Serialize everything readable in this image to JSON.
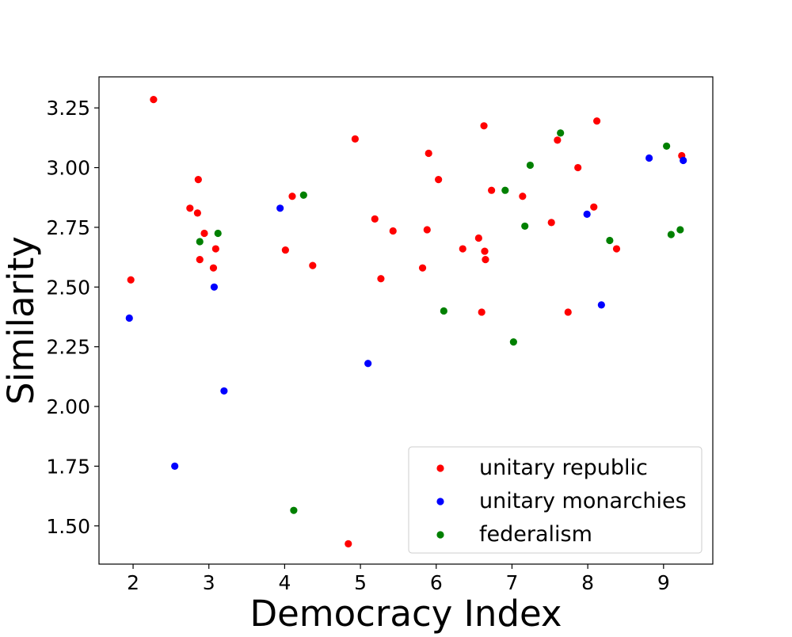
{
  "chart_data": {
    "type": "scatter",
    "title": "",
    "xlabel": "Democracy Index",
    "ylabel": "Similarity",
    "xlim": [
      1.55,
      9.65
    ],
    "ylim": [
      1.34,
      3.38
    ],
    "xticks": [
      {
        "value": 2,
        "label": "2"
      },
      {
        "value": 3,
        "label": "3"
      },
      {
        "value": 4,
        "label": "4"
      },
      {
        "value": 5,
        "label": "5"
      },
      {
        "value": 6,
        "label": "6"
      },
      {
        "value": 7,
        "label": "7"
      },
      {
        "value": 8,
        "label": "8"
      },
      {
        "value": 9,
        "label": "9"
      }
    ],
    "yticks": [
      {
        "value": 1.5,
        "label": "1.50"
      },
      {
        "value": 1.75,
        "label": "1.75"
      },
      {
        "value": 2.0,
        "label": "2.00"
      },
      {
        "value": 2.25,
        "label": "2.25"
      },
      {
        "value": 2.5,
        "label": "2.50"
      },
      {
        "value": 2.75,
        "label": "2.75"
      },
      {
        "value": 3.0,
        "label": "3.00"
      },
      {
        "value": 3.25,
        "label": "3.25"
      }
    ],
    "grid": false,
    "legend_position": "lower-right",
    "series": [
      {
        "name": "unitary republic",
        "color": "#ff0000",
        "points": [
          {
            "x": 1.97,
            "y": 2.53
          },
          {
            "x": 2.27,
            "y": 3.285
          },
          {
            "x": 2.75,
            "y": 2.83
          },
          {
            "x": 2.85,
            "y": 2.81
          },
          {
            "x": 2.86,
            "y": 2.95
          },
          {
            "x": 2.88,
            "y": 2.615
          },
          {
            "x": 2.94,
            "y": 2.725
          },
          {
            "x": 3.06,
            "y": 2.58
          },
          {
            "x": 3.09,
            "y": 2.66
          },
          {
            "x": 4.01,
            "y": 2.655
          },
          {
            "x": 4.1,
            "y": 2.88
          },
          {
            "x": 4.37,
            "y": 2.59
          },
          {
            "x": 4.84,
            "y": 1.425
          },
          {
            "x": 4.93,
            "y": 3.12
          },
          {
            "x": 5.19,
            "y": 2.785
          },
          {
            "x": 5.27,
            "y": 2.535
          },
          {
            "x": 5.43,
            "y": 2.735
          },
          {
            "x": 5.82,
            "y": 2.58
          },
          {
            "x": 5.88,
            "y": 2.74
          },
          {
            "x": 5.9,
            "y": 3.06
          },
          {
            "x": 6.03,
            "y": 2.95
          },
          {
            "x": 6.35,
            "y": 2.66
          },
          {
            "x": 6.56,
            "y": 2.705
          },
          {
            "x": 6.6,
            "y": 2.395
          },
          {
            "x": 6.63,
            "y": 3.175
          },
          {
            "x": 6.64,
            "y": 2.65
          },
          {
            "x": 6.65,
            "y": 2.615
          },
          {
            "x": 6.73,
            "y": 2.905
          },
          {
            "x": 7.14,
            "y": 2.88
          },
          {
            "x": 7.52,
            "y": 2.77
          },
          {
            "x": 7.6,
            "y": 3.115
          },
          {
            "x": 7.74,
            "y": 2.395
          },
          {
            "x": 7.87,
            "y": 3.0
          },
          {
            "x": 8.08,
            "y": 2.835
          },
          {
            "x": 8.12,
            "y": 3.195
          },
          {
            "x": 8.38,
            "y": 2.66
          },
          {
            "x": 9.24,
            "y": 3.05
          }
        ]
      },
      {
        "name": "unitary monarchies",
        "color": "#0000ff",
        "points": [
          {
            "x": 1.95,
            "y": 2.37
          },
          {
            "x": 2.55,
            "y": 1.75
          },
          {
            "x": 3.07,
            "y": 2.5
          },
          {
            "x": 3.2,
            "y": 2.065
          },
          {
            "x": 3.94,
            "y": 2.83
          },
          {
            "x": 5.1,
            "y": 2.18
          },
          {
            "x": 7.99,
            "y": 2.805
          },
          {
            "x": 8.18,
            "y": 2.425
          },
          {
            "x": 8.81,
            "y": 3.04
          },
          {
            "x": 9.26,
            "y": 3.03
          }
        ]
      },
      {
        "name": "federalism",
        "color": "#008000",
        "points": [
          {
            "x": 2.88,
            "y": 2.69
          },
          {
            "x": 3.12,
            "y": 2.725
          },
          {
            "x": 4.12,
            "y": 1.565
          },
          {
            "x": 4.25,
            "y": 2.885
          },
          {
            "x": 6.1,
            "y": 2.4
          },
          {
            "x": 6.91,
            "y": 2.905
          },
          {
            "x": 7.02,
            "y": 2.27
          },
          {
            "x": 7.17,
            "y": 2.755
          },
          {
            "x": 7.24,
            "y": 3.01
          },
          {
            "x": 7.64,
            "y": 3.145
          },
          {
            "x": 8.29,
            "y": 2.695
          },
          {
            "x": 9.04,
            "y": 3.09
          },
          {
            "x": 9.1,
            "y": 2.72
          },
          {
            "x": 9.22,
            "y": 2.74
          }
        ]
      }
    ]
  }
}
